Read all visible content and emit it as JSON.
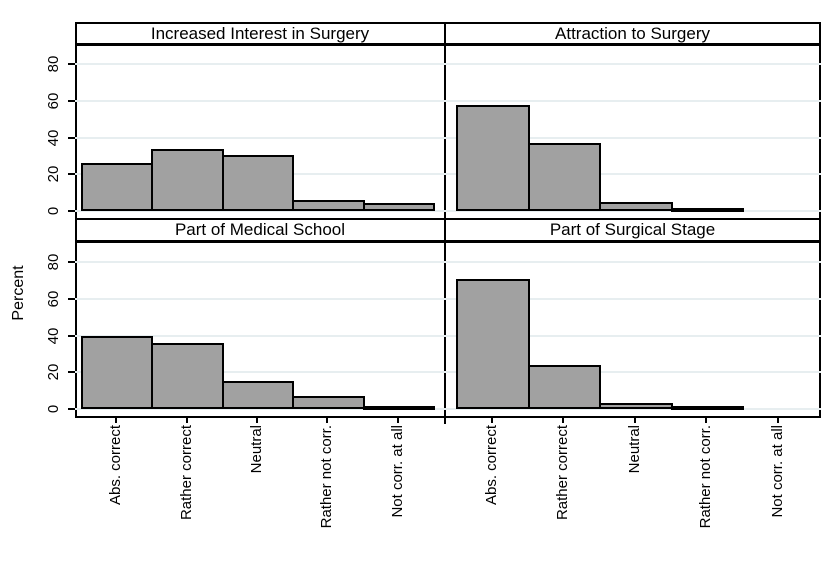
{
  "figure": {
    "ylabel": "Percent",
    "background": "#ffffff",
    "bar_fill": "#a1a1a1",
    "bar_border": "#000000",
    "gridline_color": "#e7eef0",
    "frame_color": "#000000"
  },
  "chart_data": {
    "type": "bar",
    "layout": "2x2 faceted histogram panels",
    "title": "",
    "xlabel": "",
    "ylabel": "Percent",
    "categories": [
      "Abs. correct",
      "Rather correct",
      "Neutral",
      "Rather not corr.",
      "Not corr. at all"
    ],
    "yticks": [
      0,
      20,
      40,
      60,
      80
    ],
    "ylim": [
      0,
      90
    ],
    "grid": true,
    "legend": "none",
    "panels": [
      {
        "title": "Increased Interest in Surgery",
        "values": [
          26,
          34,
          30.5,
          6,
          4.3
        ]
      },
      {
        "title": "Attraction to Surgery",
        "values": [
          58,
          37,
          5,
          0.6,
          0
        ]
      },
      {
        "title": "Part of Medical School",
        "values": [
          40,
          36,
          15.5,
          7,
          1.5
        ]
      },
      {
        "title": "Part of Surgical Stage",
        "values": [
          71,
          24,
          3.5,
          1.5,
          0
        ]
      }
    ]
  }
}
